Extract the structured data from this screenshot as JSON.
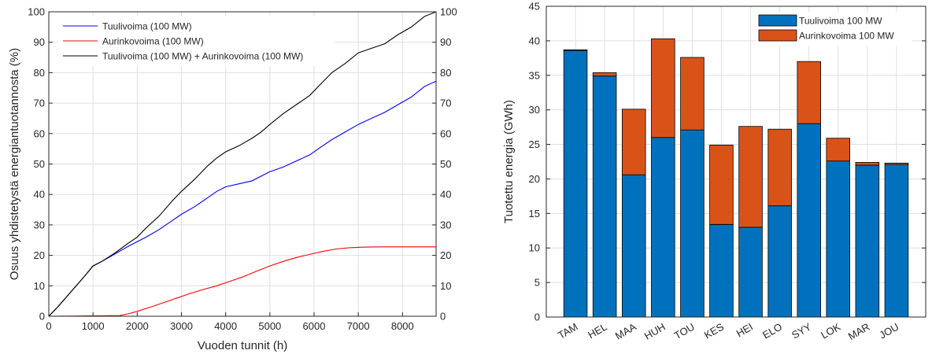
{
  "chart_data": [
    {
      "type": "line",
      "title": "",
      "xlabel": "Vuoden tunnit (h)",
      "ylabel": "Osuus yhdistetystä energiantuotannosta (%)",
      "xlim": [
        0,
        8760
      ],
      "ylim": [
        0,
        100
      ],
      "xticks": [
        "0",
        "1000",
        "2000",
        "3000",
        "4000",
        "5000",
        "6000",
        "7000",
        "8000"
      ],
      "yticks": [
        "0",
        "10",
        "20",
        "30",
        "40",
        "50",
        "60",
        "70",
        "80",
        "90",
        "100"
      ],
      "right_axis": true,
      "grid": true,
      "legend_position": "top-left",
      "series": [
        {
          "name": "Tuulivoima (100 MW)",
          "color": "#0000ff",
          "x": [
            0,
            200,
            500,
            800,
            1000,
            1200,
            1500,
            1800,
            2000,
            2200,
            2500,
            2800,
            3000,
            3300,
            3600,
            3800,
            4000,
            4300,
            4600,
            4800,
            5000,
            5300,
            5600,
            5900,
            6100,
            6400,
            6700,
            7000,
            7300,
            7600,
            7900,
            8200,
            8500,
            8760
          ],
          "y": [
            0,
            3,
            8,
            13,
            16.5,
            18,
            20.5,
            23,
            24.5,
            26,
            28.5,
            31.5,
            33.5,
            36,
            39,
            41,
            42.5,
            43.5,
            44.5,
            46,
            47.5,
            49,
            51,
            53,
            55,
            58,
            60.5,
            63,
            65,
            67,
            69.5,
            72,
            75.5,
            77.2
          ]
        },
        {
          "name": "Aurinkovoima (100 MW)",
          "color": "#ff0000",
          "x": [
            0,
            1600,
            1800,
            2000,
            2300,
            2600,
            2900,
            3200,
            3500,
            3800,
            4100,
            4400,
            4700,
            5000,
            5300,
            5600,
            5900,
            6200,
            6500,
            6800,
            7100,
            7500,
            8000,
            8760
          ],
          "y": [
            0,
            0.2,
            0.8,
            1.6,
            3.0,
            4.5,
            6.0,
            7.5,
            8.8,
            10.0,
            11.5,
            13.0,
            14.8,
            16.5,
            18.0,
            19.3,
            20.3,
            21.3,
            22.1,
            22.5,
            22.7,
            22.8,
            22.8,
            22.8
          ]
        },
        {
          "name": "Tuulivoima (100 MW) + Aurinkovoima (100 MW)",
          "color": "#000000",
          "x": [
            0,
            200,
            500,
            800,
            1000,
            1200,
            1500,
            1800,
            2000,
            2200,
            2500,
            2800,
            3000,
            3300,
            3600,
            3800,
            4000,
            4300,
            4600,
            4800,
            5000,
            5300,
            5600,
            5900,
            6100,
            6400,
            6700,
            7000,
            7300,
            7600,
            7900,
            8200,
            8500,
            8760
          ],
          "y": [
            0,
            3,
            8,
            13,
            16.5,
            18,
            20.8,
            24,
            26,
            29,
            33,
            38,
            41,
            45,
            49.5,
            52,
            54,
            56,
            58.5,
            60.5,
            63,
            66.5,
            69.5,
            72.5,
            75.5,
            80,
            83,
            86.5,
            88,
            89.5,
            92.5,
            95,
            98.5,
            100
          ]
        }
      ]
    },
    {
      "type": "bar",
      "stacked": true,
      "title": "",
      "xlabel": "",
      "ylabel": "Tuotettu energia (GWh)",
      "ylim": [
        0,
        45
      ],
      "yticks": [
        "0",
        "5",
        "10",
        "15",
        "20",
        "25",
        "30",
        "35",
        "40",
        "45"
      ],
      "grid": true,
      "legend_position": "top-right",
      "categories": [
        "TAM",
        "HEL",
        "MAA",
        "HUH",
        "TOU",
        "KES",
        "HEI",
        "ELO",
        "SYY",
        "LOK",
        "MAR",
        "JOU"
      ],
      "series": [
        {
          "name": "Tuulivoima 100 MW",
          "color": "#0072bd",
          "values": [
            38.6,
            34.9,
            20.6,
            26.0,
            27.1,
            13.4,
            13.0,
            16.1,
            28.0,
            22.6,
            22.0,
            22.1
          ]
        },
        {
          "name": "Aurinkovoima 100 MW",
          "color": "#d95319",
          "values": [
            0.1,
            0.5,
            9.5,
            14.3,
            10.5,
            11.5,
            14.6,
            11.1,
            9.0,
            3.3,
            0.4,
            0.2
          ]
        }
      ]
    }
  ]
}
